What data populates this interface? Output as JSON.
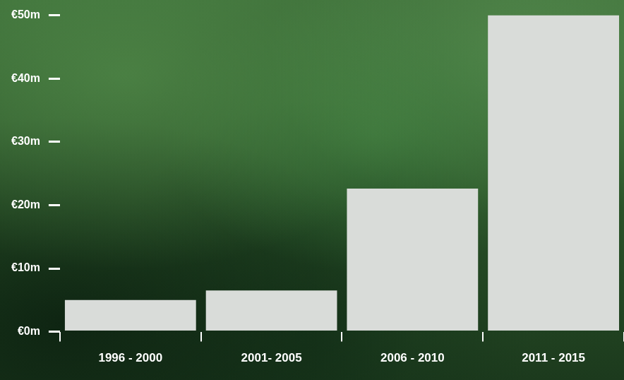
{
  "chart_data": {
    "type": "bar",
    "categories": [
      "1996 - 2000",
      "2001- 2005",
      "2006 - 2010",
      "2011 - 2015"
    ],
    "values": [
      5,
      6.5,
      22.6,
      50
    ],
    "color": "#d9dcd9",
    "ylim": [
      0,
      50
    ],
    "yticks": [
      {
        "value": 0,
        "label": "€0m"
      },
      {
        "value": 10,
        "label": "€10m"
      },
      {
        "value": 20,
        "label": "€20m"
      },
      {
        "value": 30,
        "label": "€30m"
      },
      {
        "value": 40,
        "label": "€40m"
      },
      {
        "value": 50,
        "label": "€50m"
      }
    ],
    "grid": false
  }
}
